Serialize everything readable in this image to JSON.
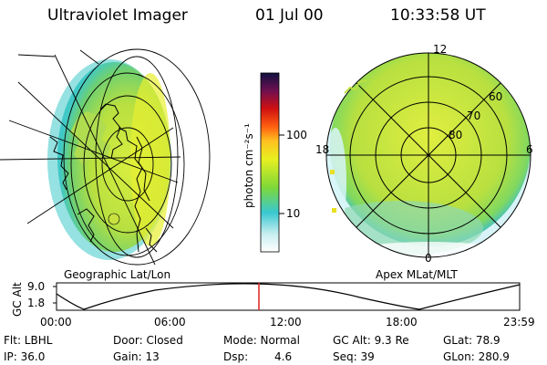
{
  "header": {
    "title": "Ultraviolet Imager",
    "date": "01 Jul 00",
    "time": "10:33:58 UT"
  },
  "colorbar": {
    "unit_label": "photon cm⁻²s⁻¹",
    "tick_labels": [
      "100",
      "10"
    ]
  },
  "left_panel": {
    "caption": "Geographic Lat/Lon"
  },
  "right_panel": {
    "caption": "Apex MLat/MLT",
    "mlt_labels": [
      "12",
      "18",
      "6",
      "0"
    ],
    "lat_labels": [
      "60",
      "70",
      "80"
    ]
  },
  "altitude_plot": {
    "ylabel": "GC Alt",
    "yticks": [
      "9.0",
      "1.8"
    ],
    "xticks": [
      "00:00",
      "06:00",
      "12:00",
      "18:00",
      "23:59"
    ],
    "current_time_marker": "10:33:58"
  },
  "info": {
    "flt": "Flt: LBHL",
    "ip": "IP: 36.0",
    "door": "Door: Closed",
    "gain": "Gain: 13",
    "mode": "Mode: Normal",
    "dsp_label": "Dsp:",
    "dsp_value": "4.6",
    "gc_alt": "GC Alt: 9.3 Re",
    "seq": "Seq: 39",
    "glat": "GLat: 78.9",
    "glon": "GLon: 280.9"
  }
}
